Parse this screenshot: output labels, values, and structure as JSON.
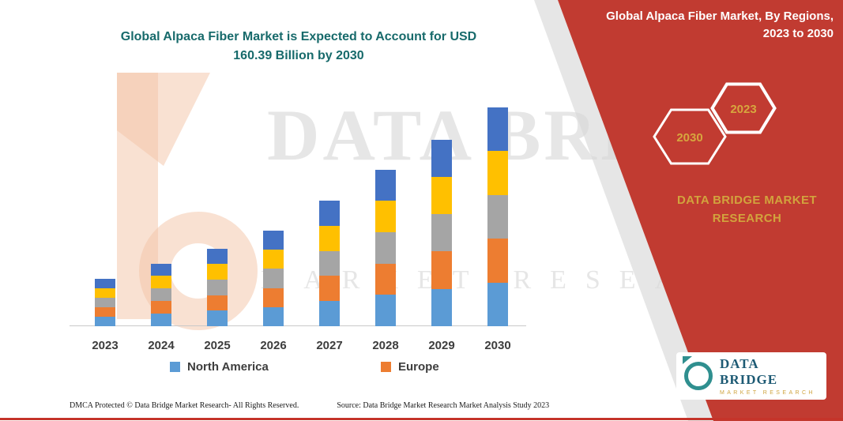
{
  "title": {
    "line1": "Global Alpaca Fiber Market is Expected to Account for USD",
    "line2": "160.39 Billion by 2030"
  },
  "panel": {
    "heading_line1": "Global Alpaca Fiber Market, By Regions,",
    "heading_line2": "2023 to 2030",
    "hexagons": [
      {
        "label": "2030"
      },
      {
        "label": "2023"
      }
    ],
    "brand_line1": "DATA BRIDGE MARKET",
    "brand_line2": "RESEARCH",
    "panel_color": "#c13b31",
    "gold_color": "#d2a33d"
  },
  "watermark": {
    "line1": "DATA BRIDGE",
    "line2": "MARKET RESEARCH"
  },
  "logo_card": {
    "brand": "DATA BRIDGE",
    "sub": "MARKET RESEARCH"
  },
  "footer": {
    "dmca": "DMCA Protected © Data Bridge Market Research-  All Rights Reserved.",
    "source": "Source: Data Bridge Market Research  Market Analysis Study 2023"
  },
  "chart_data": {
    "type": "bar",
    "stacked": true,
    "unit": "USD Billion",
    "title": "Global Alpaca Fiber Market is Expected to Account for USD 160.39 Billion by 2030",
    "categories": [
      "2023",
      "2024",
      "2025",
      "2026",
      "2027",
      "2028",
      "2029",
      "2030"
    ],
    "totals": [
      35,
      46,
      57,
      70,
      92,
      115,
      137,
      160.39
    ],
    "series": [
      {
        "name": "North America",
        "color": "#5B9BD5",
        "values": [
          7,
          9.2,
          11.4,
          14,
          18.4,
          23,
          27.4,
          32.08
        ]
      },
      {
        "name": "Europe",
        "color": "#ED7D31",
        "values": [
          7,
          9.2,
          11.4,
          14,
          18.4,
          23,
          27.4,
          32.08
        ]
      },
      {
        "name": "segment-gray",
        "color": "#A5A5A5",
        "values": [
          7,
          9.2,
          11.4,
          14,
          18.4,
          23,
          27.4,
          32.08
        ]
      },
      {
        "name": "segment-yellow",
        "color": "#FFC000",
        "values": [
          7,
          9.2,
          11.4,
          14,
          18.4,
          23,
          27.4,
          32.08
        ]
      },
      {
        "name": "segment-darkblue",
        "color": "#4472C4",
        "values": [
          7,
          9.2,
          11.4,
          14,
          18.4,
          23,
          27.4,
          32.07
        ]
      }
    ],
    "legend": [
      "North America",
      "Europe"
    ],
    "legend_position": "bottom",
    "grid": false,
    "ylim": [
      0,
      170
    ]
  }
}
